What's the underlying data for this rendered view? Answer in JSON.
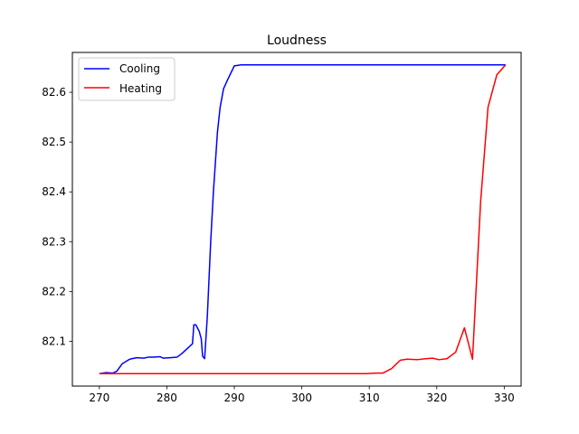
{
  "chart_data": {
    "type": "line",
    "title": "Loudness",
    "xlabel": "",
    "ylabel": "",
    "xlim": [
      266,
      332.5
    ],
    "ylim": [
      82.01,
      82.68
    ],
    "xticks": [
      270,
      280,
      290,
      300,
      310,
      320,
      330
    ],
    "yticks": [
      82.1,
      82.2,
      82.3,
      82.4,
      82.5,
      82.6
    ],
    "grid": false,
    "legend_position": "top-left",
    "series": [
      {
        "name": "Cooling",
        "color": "#0000ff",
        "points": [
          [
            270,
            82.035
          ],
          [
            271,
            82.037
          ],
          [
            272,
            82.036
          ],
          [
            272.6,
            82.04
          ],
          [
            273.4,
            82.055
          ],
          [
            274.5,
            82.064
          ],
          [
            275.5,
            82.067
          ],
          [
            276.6,
            82.066
          ],
          [
            277.2,
            82.068
          ],
          [
            278,
            82.068
          ],
          [
            279,
            82.069
          ],
          [
            279.5,
            82.066
          ],
          [
            280.5,
            82.067
          ],
          [
            281.5,
            82.068
          ],
          [
            282.2,
            82.075
          ],
          [
            283,
            82.085
          ],
          [
            283.8,
            82.095
          ],
          [
            284.0,
            82.133
          ],
          [
            284.3,
            82.133
          ],
          [
            284.8,
            82.12
          ],
          [
            285.1,
            82.105
          ],
          [
            285.3,
            82.07
          ],
          [
            285.6,
            82.065
          ],
          [
            286.0,
            82.15
          ],
          [
            286.5,
            82.3
          ],
          [
            286.9,
            82.4
          ],
          [
            287.5,
            82.52
          ],
          [
            287.9,
            82.57
          ],
          [
            288.4,
            82.607
          ],
          [
            289.0,
            82.625
          ],
          [
            290.0,
            82.653
          ],
          [
            291.0,
            82.655
          ],
          [
            300,
            82.655
          ],
          [
            310,
            82.655
          ],
          [
            320,
            82.655
          ],
          [
            330.2,
            82.655
          ]
        ]
      },
      {
        "name": "Heating",
        "color": "#ff0000",
        "points": [
          [
            270,
            82.035
          ],
          [
            280,
            82.035
          ],
          [
            290,
            82.035
          ],
          [
            300,
            82.035
          ],
          [
            309.5,
            82.035
          ],
          [
            311,
            82.036
          ],
          [
            312,
            82.036
          ],
          [
            313.3,
            82.045
          ],
          [
            314.6,
            82.062
          ],
          [
            315.6,
            82.064
          ],
          [
            317.1,
            82.063
          ],
          [
            318.3,
            82.065
          ],
          [
            319.4,
            82.066
          ],
          [
            320.3,
            82.063
          ],
          [
            321.5,
            82.065
          ],
          [
            322.8,
            82.078
          ],
          [
            324.1,
            82.127
          ],
          [
            325.3,
            82.064
          ],
          [
            326.5,
            82.38
          ],
          [
            327.6,
            82.57
          ],
          [
            328.9,
            82.635
          ],
          [
            330.2,
            82.655
          ]
        ]
      }
    ]
  }
}
